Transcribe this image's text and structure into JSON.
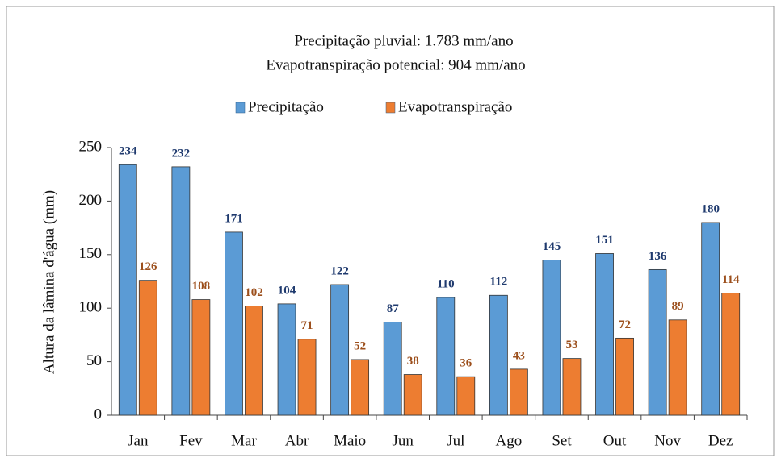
{
  "chart_data": {
    "type": "bar",
    "title": "Precipitação  pluvial:  1.783 mm/ano",
    "subtitle": "Evapotranspiração  potencial:  904 mm/ano",
    "y_label": "Altura  da lâmina  d'água  (mm)",
    "categories": [
      "Jan",
      "Fev",
      "Mar",
      "Abr",
      "Maio",
      "Jun",
      "Jul",
      "Ago",
      "Set",
      "Out",
      "Nov",
      "Dez"
    ],
    "series": [
      {
        "name": "Precipitação",
        "color": "#5b9bd5",
        "label_color": "#1f3a6e",
        "values": [
          234,
          232,
          171,
          104,
          122,
          87,
          110,
          112,
          145,
          151,
          136,
          180
        ]
      },
      {
        "name": "Evapotranspiração",
        "color": "#ed7d31",
        "label_color": "#9c4f1c",
        "values": [
          126,
          108,
          102,
          71,
          52,
          38,
          36,
          43,
          53,
          72,
          89,
          114
        ]
      }
    ],
    "ylim": [
      0,
      250
    ],
    "yticks": [
      0,
      50,
      100,
      150,
      200,
      250
    ],
    "grid": false,
    "legend": "top"
  }
}
